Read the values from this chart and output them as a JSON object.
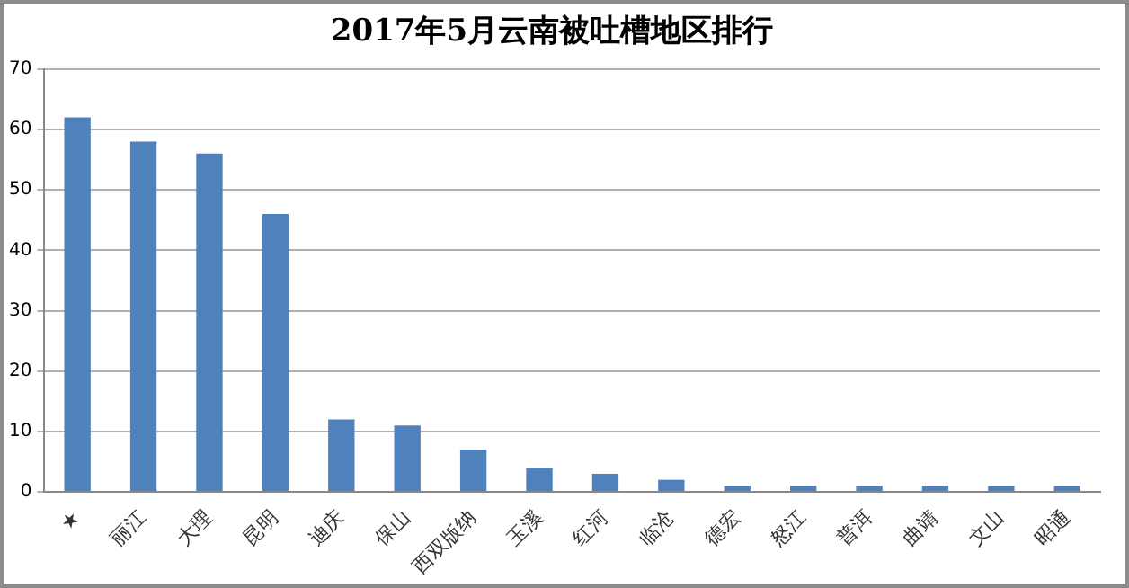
{
  "chart_data": {
    "type": "bar",
    "title": "2017年5月云南被吐槽地区排行",
    "categories": [
      "★",
      "丽江",
      "大理",
      "昆明",
      "迪庆",
      "保山",
      "西双版纳",
      "玉溪",
      "红河",
      "临沧",
      "德宏",
      "怒江",
      "普洱",
      "曲靖",
      "文山",
      "昭通"
    ],
    "values": [
      62,
      58,
      56,
      46,
      12,
      11,
      7,
      4,
      3,
      2,
      1,
      1,
      1,
      1,
      1,
      1
    ],
    "color": "#4f81bd",
    "ylim": [
      0,
      70
    ],
    "yticks": [
      0,
      10,
      20,
      30,
      40,
      50,
      60,
      70
    ],
    "grid": "y",
    "legend": false
  }
}
